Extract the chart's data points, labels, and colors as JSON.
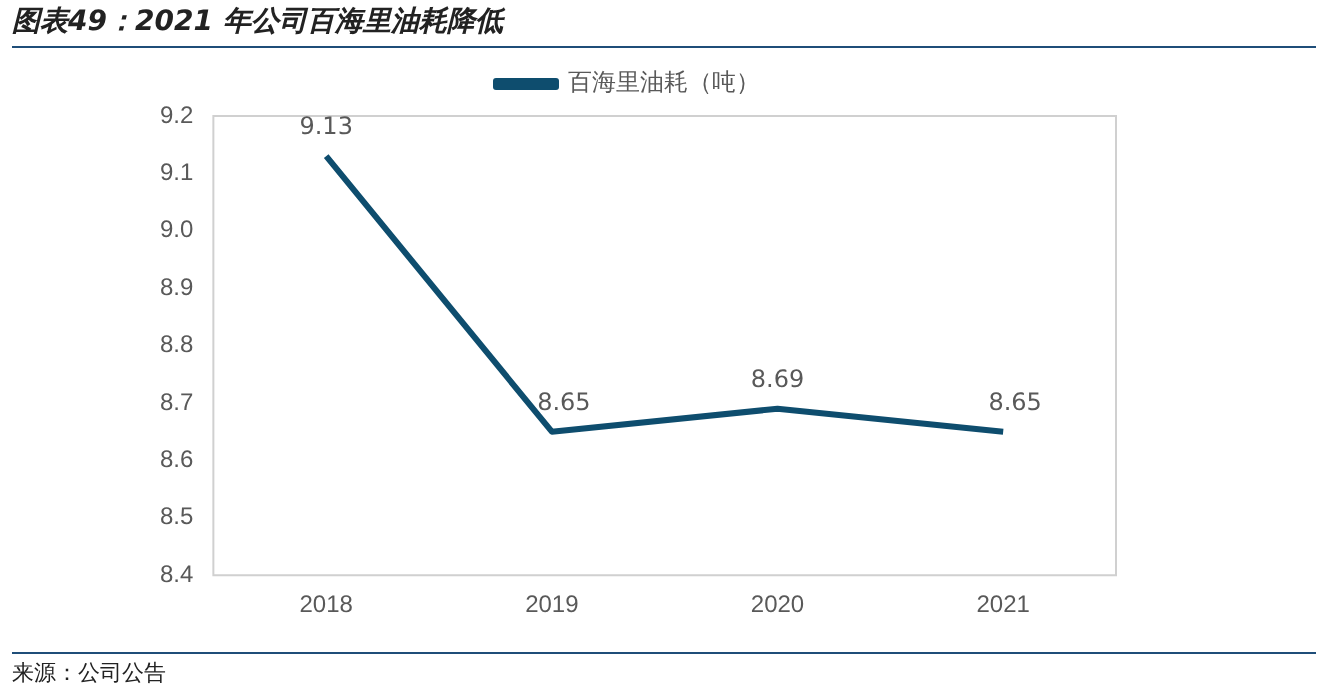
{
  "chart_data": {
    "type": "line",
    "title": "图表49：2021 年公司百海里油耗降低",
    "categories": [
      "2018",
      "2019",
      "2020",
      "2021"
    ],
    "series": [
      {
        "name": "百海里油耗（吨）",
        "color": "#0e4d6e",
        "values": [
          9.13,
          8.65,
          8.69,
          8.65
        ]
      }
    ],
    "ylim": [
      8.4,
      9.2
    ],
    "yticks": [
      8.4,
      8.5,
      8.6,
      8.7,
      8.8,
      8.9,
      {
        "value": 9.0,
        "label": "9.0"
      },
      9.1,
      9.2
    ],
    "grid": false,
    "legend": "top",
    "marker": "none",
    "data_labels": true,
    "annotations": [
      "来源：公司公告"
    ]
  }
}
